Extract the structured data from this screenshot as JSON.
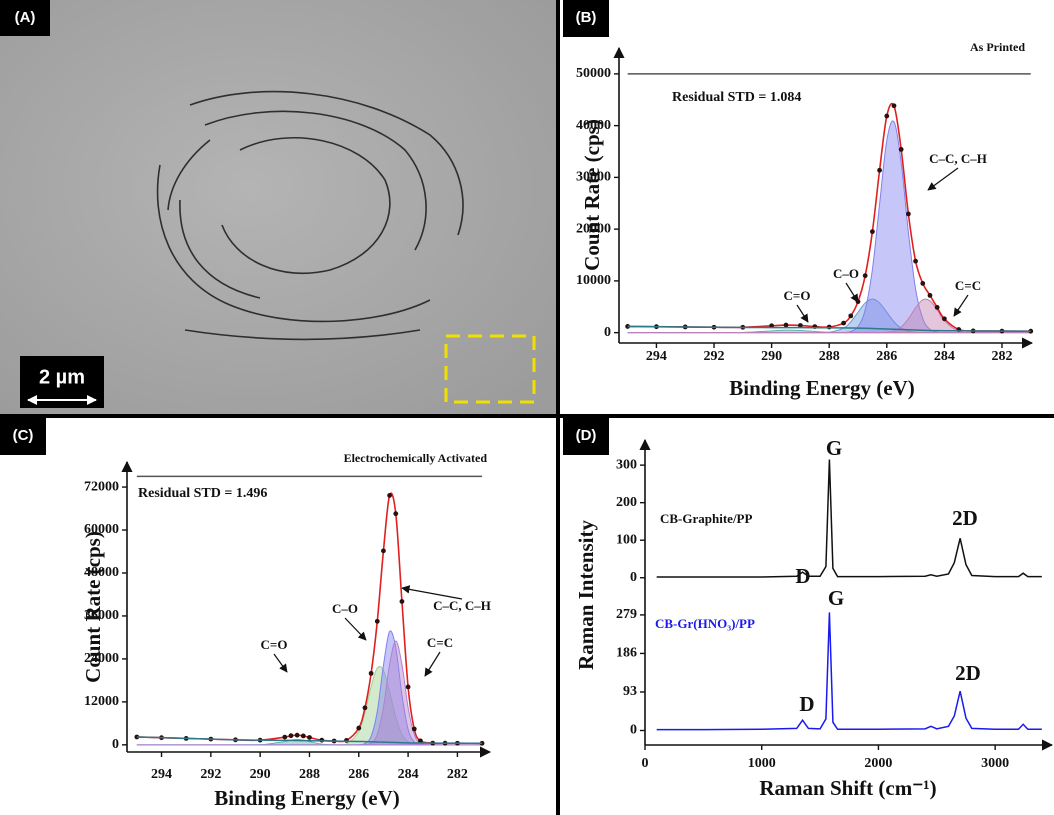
{
  "image_panel": {
    "label": "(A)",
    "scale_bar": "2 µm"
  },
  "chart_data": [
    {
      "type": "line",
      "panel_label": "(B)",
      "smooth": true,
      "x": [
        295,
        294,
        293,
        292,
        291,
        290,
        289.5,
        289,
        288.5,
        288,
        287.5,
        287.25,
        287,
        286.75,
        286.5,
        286.25,
        286,
        285.75,
        285.5,
        285.25,
        285,
        284.75,
        284.5,
        284.25,
        284,
        283.5,
        283,
        282,
        281
      ],
      "xlim": [
        295.3,
        281.2
      ],
      "xticks": [
        294,
        292,
        290,
        288,
        286,
        284,
        282
      ],
      "ylim": [
        -2000,
        55000
      ],
      "yticks": [
        0,
        10000,
        20000,
        30000,
        40000,
        50000
      ],
      "x_label": "Binding Energy (eV)",
      "y_label": "Count Rate (cps)",
      "annotations": [
        "As Printed",
        "Residual STD = 1.084"
      ],
      "series": [
        {
          "style": "line-markers",
          "color": "#e02020",
          "marker_color": "#2a1010",
          "values": [
            1200,
            1150,
            1100,
            1050,
            1037,
            1326,
            1465,
            1385,
            1170,
            1080,
            1846,
            3240,
            5990,
            11010,
            19520,
            31362,
            41852,
            43837,
            35402,
            22938,
            13818,
            9518,
            7199,
            4879,
            2674,
            600,
            338,
            300,
            280
          ]
        },
        {
          "style": "line",
          "color": "#2a7a8a",
          "values": [
            1200,
            1150,
            1100,
            1050,
            1000,
            980,
            970,
            960,
            950,
            940,
            920,
            900,
            880,
            850,
            800,
            750,
            700,
            650,
            600,
            550,
            500,
            460,
            420,
            390,
            370,
            350,
            330,
            300,
            280
          ]
        },
        {
          "name": "C=O",
          "style": "fill",
          "color": "#60b0b0",
          "values": [
            0,
            0,
            0,
            0,
            37,
            346,
            495,
            425,
            219,
            68,
            13,
            0,
            0,
            0,
            0,
            0,
            0,
            0,
            0,
            0,
            0,
            0,
            0,
            0,
            0,
            0,
            0,
            0,
            0
          ]
        },
        {
          "name": "C–O",
          "style": "fill",
          "color": "#6a9ad8",
          "values": [
            0,
            0,
            0,
            0,
            0,
            0,
            0,
            0,
            2,
            72,
            880,
            2110,
            3940,
            5740,
            6500,
            5740,
            3940,
            2110,
            880,
            286,
            72,
            14,
            0,
            0,
            0,
            0,
            0,
            0,
            0
          ]
        },
        {
          "name": "C–C, C–H",
          "style": "fill",
          "color": "#8080f0",
          "values": [
            0,
            0,
            0,
            0,
            0,
            0,
            0,
            0,
            0,
            0,
            33,
            230,
            1170,
            4420,
            12220,
            24860,
            37140,
            40750,
            32830,
            19430,
            8440,
            2700,
            630,
            110,
            14,
            0,
            0,
            0,
            0
          ]
        },
        {
          "name": "C=C",
          "style": "fill",
          "color": "#c080b0",
          "values": [
            0,
            0,
            0,
            0,
            0,
            0,
            0,
            0,
            0,
            0,
            0,
            0,
            0,
            0,
            0,
            12,
            72,
            327,
            1092,
            2672,
            4806,
            6344,
            6149,
            4379,
            2290,
            248,
            8,
            0,
            0
          ]
        },
        {
          "style": "line",
          "color": "#555555",
          "x": [
            295,
            281
          ],
          "values": [
            50000,
            50000
          ]
        }
      ]
    },
    {
      "type": "line",
      "panel_label": "(C)",
      "smooth": true,
      "x": [
        295,
        294,
        293,
        292,
        291,
        290,
        289,
        288.75,
        288.5,
        288.25,
        288,
        287.5,
        287,
        286.5,
        286,
        285.75,
        285.5,
        285.25,
        285,
        284.75,
        284.5,
        284.25,
        284,
        283.75,
        283.5,
        283,
        282.5,
        282,
        281
      ],
      "xlim": [
        295.4,
        280.8
      ],
      "xticks": [
        294,
        292,
        290,
        288,
        286,
        284,
        282
      ],
      "ylim": [
        -2000,
        79000
      ],
      "yticks": [
        0,
        12000,
        24000,
        36000,
        48000,
        60000,
        72000
      ],
      "x_label": "Binding Energy (eV)",
      "y_label": "Count Rate (cps)",
      "annotations": [
        "Electrochemically Activated",
        "Residual STD = 1.496"
      ],
      "series": [
        {
          "style": "line-markers",
          "color": "#e02020",
          "marker_color": "#2a1010",
          "values": [
            2200,
            2000,
            1800,
            1600,
            1400,
            1317,
            2160,
            2550,
            2700,
            2500,
            2060,
            1300,
            1072,
            1244,
            4682,
            10344,
            19960,
            34490,
            54180,
            69670,
            64570,
            40040,
            16170,
            4424,
            1106,
            480,
            460,
            450,
            430
          ]
        },
        {
          "style": "line",
          "color": "#2a7a8a",
          "values": [
            2200,
            2000,
            1800,
            1600,
            1400,
            1300,
            1250,
            1230,
            1200,
            1180,
            1150,
            1100,
            1050,
            1000,
            950,
            900,
            850,
            800,
            750,
            700,
            650,
            600,
            550,
            520,
            500,
            480,
            460,
            450,
            430
          ]
        },
        {
          "name": "C=O",
          "style": "fill",
          "color": "#60b0b0",
          "values": [
            0,
            0,
            0,
            0,
            0,
            17,
            910,
            1320,
            1500,
            1320,
            910,
            200,
            17,
            0,
            0,
            0,
            0,
            0,
            0,
            0,
            0,
            0,
            0,
            0,
            0,
            0,
            0,
            0,
            0
          ]
        },
        {
          "name": "C–O",
          "style": "fill",
          "color": "#a0d090",
          "values": [
            0,
            0,
            0,
            0,
            0,
            0,
            0,
            0,
            0,
            0,
            0,
            0,
            5,
            244,
            3700,
            9040,
            16270,
            21460,
            20810,
            14820,
            7750,
            2980,
            840,
            174,
            26,
            0,
            0,
            0,
            0
          ]
        },
        {
          "name": "C–C, C–H",
          "style": "fill",
          "color": "#8080f0",
          "values": [
            0,
            0,
            0,
            0,
            0,
            0,
            0,
            0,
            0,
            0,
            0,
            0,
            0,
            0,
            32,
            355,
            2350,
            9310,
            22170,
            31680,
            27170,
            13990,
            4330,
            810,
            90,
            0,
            0,
            0,
            0
          ]
        },
        {
          "name": "C=C",
          "style": "fill",
          "color": "#b080d0",
          "values": [
            0,
            0,
            0,
            0,
            0,
            0,
            0,
            0,
            0,
            0,
            0,
            0,
            0,
            0,
            0,
            49,
            490,
            2920,
            10450,
            22470,
            29000,
            22470,
            10450,
            2920,
            490,
            0,
            0,
            0,
            0
          ]
        },
        {
          "style": "line",
          "color": "#555555",
          "x": [
            295,
            281
          ],
          "values": [
            75000,
            75000
          ]
        }
      ]
    },
    {
      "type": "line",
      "panel_label": "(D)",
      "x": [
        100,
        500,
        1000,
        1300,
        1350,
        1400,
        1500,
        1550,
        1580,
        1610,
        1650,
        1800,
        2000,
        2400,
        2450,
        2500,
        2600,
        2650,
        2700,
        2750,
        2800,
        3000,
        3200,
        3240,
        3280,
        3400
      ],
      "xlim": [
        0,
        3470
      ],
      "ylim": [
        -30,
        335
      ],
      "yticks": [
        0,
        100,
        200,
        300
      ],
      "annotations": [
        "CB-Graphite/PP",
        "D",
        "G",
        "2D"
      ],
      "series": [
        {
          "style": "line",
          "color": "#111111",
          "values": [
            2,
            2,
            2,
            4,
            15,
            4,
            4,
            30,
            315,
            25,
            3,
            3,
            3,
            4,
            8,
            4,
            10,
            40,
            105,
            35,
            6,
            3,
            3,
            12,
            3,
            3
          ]
        }
      ]
    },
    {
      "type": "line",
      "x": [
        100,
        500,
        1000,
        1300,
        1350,
        1400,
        1500,
        1550,
        1580,
        1610,
        1650,
        1800,
        2000,
        2400,
        2450,
        2500,
        2600,
        2650,
        2700,
        2750,
        2800,
        3000,
        3200,
        3240,
        3280,
        3400
      ],
      "xlim": [
        0,
        3470
      ],
      "xticks": [
        0,
        1000,
        2000,
        3000
      ],
      "ylim": [
        -35,
        315
      ],
      "yticks": [
        0,
        93,
        186,
        279
      ],
      "x_label": "Raman Shift (cm⁻¹)",
      "y_label": "Raman Intensity",
      "annotations": [
        "CB-Gr(HNO₃)/PP",
        "D",
        "G",
        "2D"
      ],
      "series": [
        {
          "style": "line",
          "color": "#1a1aee",
          "values": [
            2,
            2,
            3,
            5,
            25,
            5,
            4,
            28,
            285,
            20,
            3,
            3,
            3,
            4,
            10,
            4,
            10,
            35,
            95,
            30,
            5,
            3,
            3,
            15,
            3,
            3
          ]
        }
      ]
    }
  ]
}
